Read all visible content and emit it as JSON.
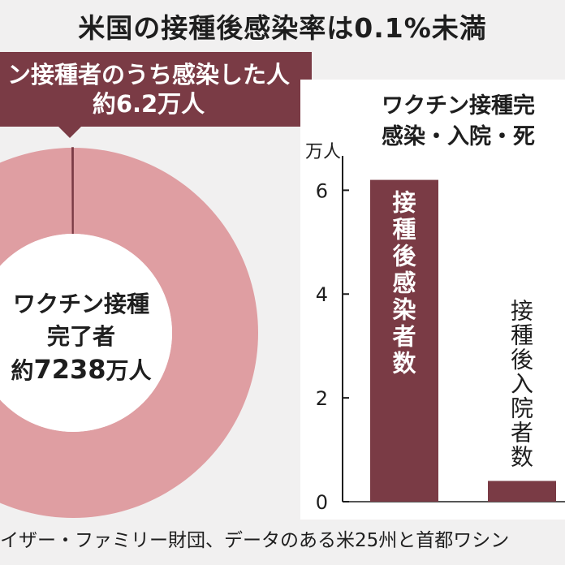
{
  "title": "米国の接種後感染率は0.1%未満",
  "donut": {
    "callout_line1": "ン接種者のうち感染した人",
    "callout_line2": "約6.2万人",
    "center_line1": "ワクチン接種",
    "center_line2": "完了者",
    "center_line3_prefix": "約",
    "center_line3_number": "7238",
    "center_line3_suffix": "万人",
    "colors": {
      "ring": "#df9ea2",
      "infected": "#7a3b45",
      "callout": "#7a3b45"
    }
  },
  "bar_panel": {
    "title_line1": "ワクチン接種完",
    "title_line2": "感染・入院・死"
  },
  "chart_data": [
    {
      "type": "pie",
      "values": [
        7238,
        6.2
      ],
      "unit": "万人"
    },
    {
      "type": "bar",
      "ylabel": "万人",
      "ylim": [
        0,
        6.6
      ],
      "yticks": [
        "0",
        "2",
        "4",
        "6"
      ],
      "categories": [
        "接種後感染者数",
        "接種後入院者数"
      ],
      "values": [
        6.2,
        0.4
      ],
      "bar_colors": [
        "#7a3b45",
        "#7a3b45"
      ],
      "label_colors": [
        "#ffffff",
        "#1e1e1e"
      ]
    }
  ],
  "source": "イザー・ファミリー財団、データのある米25州と首都ワシン"
}
